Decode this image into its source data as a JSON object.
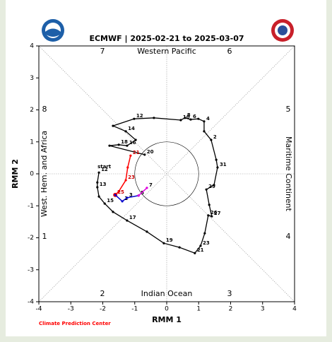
{
  "chart_data": {
    "type": "line",
    "title": "ECMWF | 2025-02-21 to 2025-03-07",
    "xlabel": "RMM 1",
    "ylabel": "RMM 2",
    "xlim": [
      -4,
      4
    ],
    "ylim": [
      -4,
      4
    ],
    "xticks": [
      -4,
      -3,
      -2,
      -1,
      0,
      1,
      2,
      3,
      4
    ],
    "yticks": [
      -4,
      -3,
      -2,
      -1,
      0,
      1,
      2,
      3,
      4
    ],
    "circle_radius": 1,
    "phase_labels": [
      "1",
      "2",
      "3",
      "4",
      "5",
      "6",
      "7",
      "8"
    ],
    "regions": {
      "top": "Western Pacific",
      "bottom": "Indian Ocean",
      "left": "West. Hem. and Africa",
      "right": "Maritime Continent"
    },
    "start_label": "start",
    "credit": "Climate Prediction Center",
    "series": [
      {
        "color": "#000000",
        "x": [
          -2.12,
          -2.17,
          -2.17,
          -2.12,
          -1.94,
          -1.68,
          -1.24,
          -0.62,
          -0.09,
          0.4,
          0.88,
          1.06,
          1.19,
          1.3,
          1.41,
          1.33,
          1.24,
          1.48,
          1.59,
          1.55,
          1.39,
          1.17,
          1.17,
          0.99,
          0.75,
          0.57,
          0.44,
          -0.4,
          -1.02,
          -1.68,
          -1.28,
          -0.97,
          -1.24,
          -1.5,
          -1.79,
          -0.69
        ],
        "values": [
          0.04,
          -0.27,
          -0.42,
          -0.71,
          -0.93,
          -1.19,
          -1.46,
          -1.81,
          -2.17,
          -2.3,
          -2.48,
          -2.25,
          -1.86,
          -1.3,
          -1.33,
          -0.97,
          -0.49,
          -0.35,
          0.2,
          0.44,
          1.06,
          1.33,
          1.64,
          1.72,
          1.7,
          1.75,
          1.68,
          1.75,
          1.72,
          1.5,
          1.33,
          1.06,
          0.88,
          0.91,
          0.88,
          0.6
        ],
        "labels": [
          "12",
          null,
          "13",
          null,
          "15",
          null,
          "17",
          null,
          "19",
          null,
          "21",
          "23",
          null,
          "26",
          "27",
          null,
          "29",
          null,
          "31",
          null,
          "2",
          null,
          "4",
          null,
          "6",
          "8",
          "10",
          null,
          "12",
          null,
          "14",
          null,
          "16",
          "18",
          null,
          "20"
        ]
      },
      {
        "color": "#ff0000",
        "x": [
          -1.13,
          -1.22,
          -1.28,
          -1.5,
          -1.61
        ],
        "values": [
          0.57,
          0.2,
          -0.2,
          -0.55,
          -0.66
        ],
        "labels": [
          "21",
          null,
          "23",
          null,
          "25"
        ]
      },
      {
        "color": "#0000cc",
        "x": [
          -1.61,
          -1.39,
          -1.24,
          -0.88
        ],
        "values": [
          -0.66,
          -0.86,
          -0.75,
          -0.68
        ],
        "labels": [
          null,
          "1",
          "3",
          "5"
        ]
      },
      {
        "color": "#dd00dd",
        "x": [
          -0.88,
          -0.62
        ],
        "values": [
          -0.68,
          -0.44
        ],
        "labels": [
          null,
          "7"
        ]
      }
    ]
  }
}
